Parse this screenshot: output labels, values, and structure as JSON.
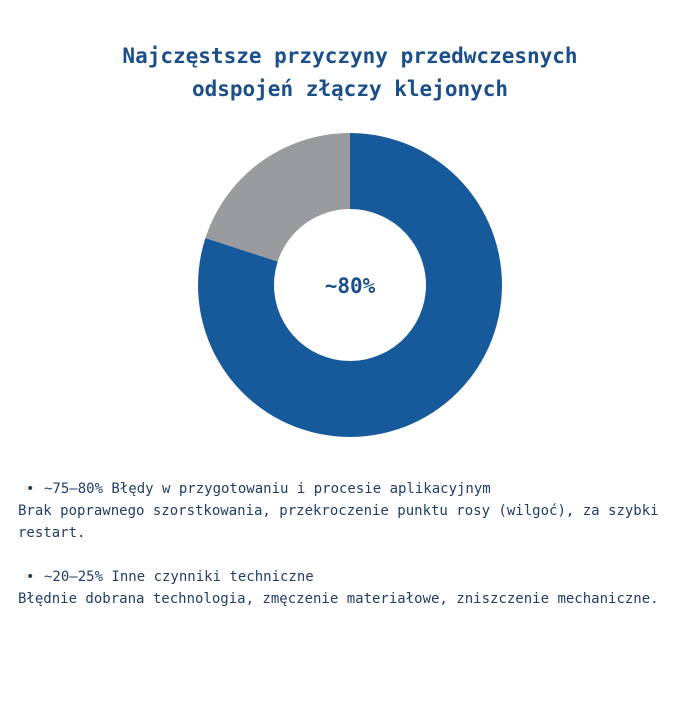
{
  "colors": {
    "title": "#1a4f8a",
    "primary_segment": "#175a9c",
    "secondary_segment": "#9a9b9f",
    "center_text": "#1a4f8a",
    "body_text": "#1f3f66",
    "background": "#ffffff"
  },
  "chart_data": {
    "type": "pie",
    "variant": "donut",
    "title": [
      "Najczęstsze przyczyny przedwczesnych",
      "odspojeń złączy klejonych"
    ],
    "center_label": "~80%",
    "slices": [
      {
        "value": 80,
        "color_key": "primary_segment"
      },
      {
        "value": 20,
        "color_key": "secondary_segment"
      }
    ],
    "legend": "below"
  },
  "notes": [
    {
      "bullet": "•",
      "head": "~75–80% Błędy w przygotowaniu i procesie aplikacyjnym",
      "desc": "Brak poprawnego szorstkowania, przekroczenie punktu rosy (wilgoć), za szybki restart."
    },
    {
      "bullet": "•",
      "head": "~20–25% Inne czynniki techniczne",
      "desc": "Błędnie dobrana technologia, zmęczenie materiałowe, zniszczenie mechaniczne."
    }
  ]
}
